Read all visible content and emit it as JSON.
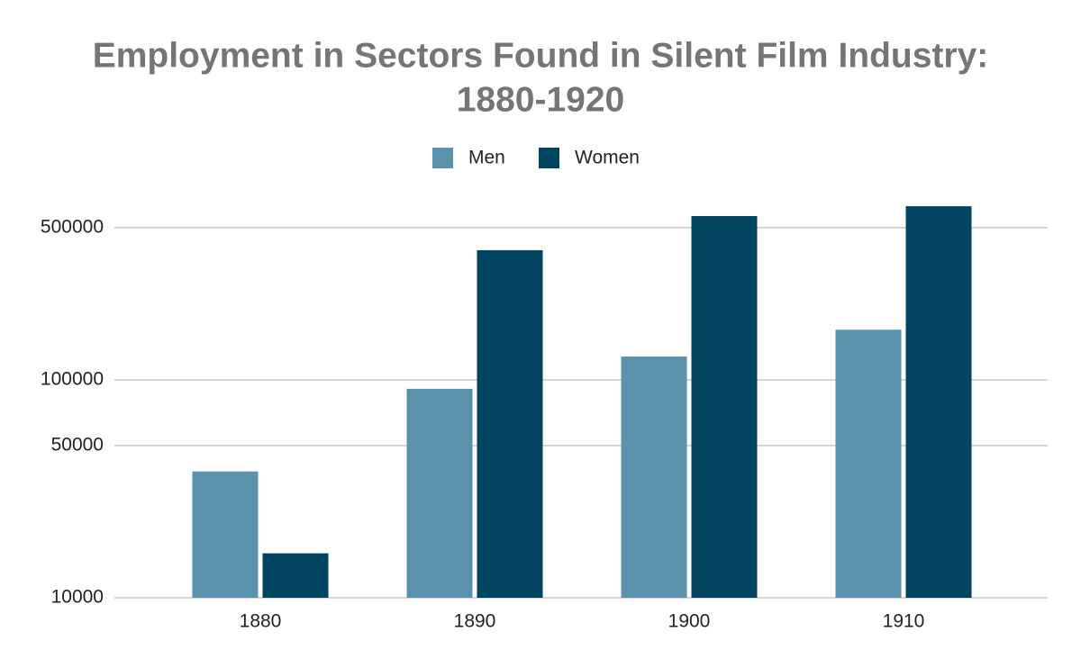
{
  "chart_data": {
    "type": "bar",
    "title": [
      "Employment in Sectors Found in Silent Film Industry:",
      "1880-1920"
    ],
    "categories": [
      "1880",
      "1890",
      "1900",
      "1910"
    ],
    "series": [
      {
        "name": "Men",
        "color": "#5a91ad",
        "values": [
          38000,
          91000,
          128000,
          170000
        ]
      },
      {
        "name": "Women",
        "color": "#004460",
        "values": [
          16000,
          394000,
          565000,
          627000
        ]
      }
    ],
    "ylim": [
      10000,
      1000000
    ],
    "yticks": [
      10000,
      50000,
      100000,
      500000
    ],
    "log_scale": true,
    "grid": true,
    "legend": "top"
  }
}
